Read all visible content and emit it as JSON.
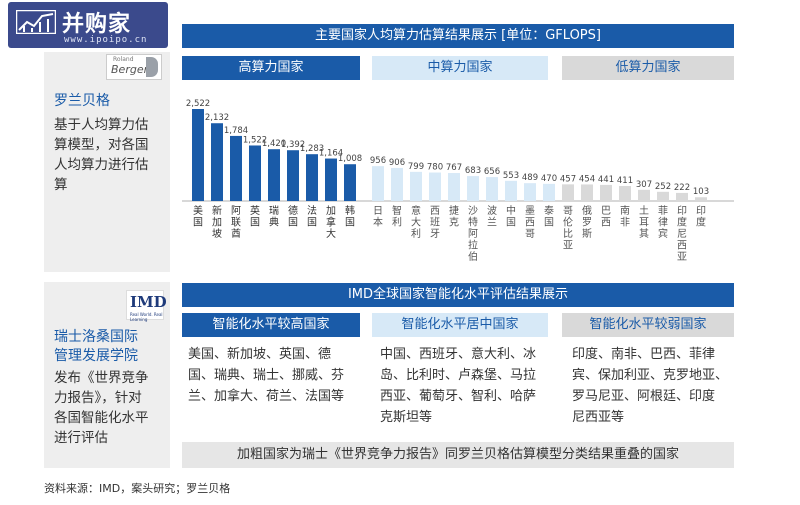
{
  "logo": {
    "name": "并购家",
    "url": "www.ipoipo.cn"
  },
  "top_section": {
    "header": "主要国家人均算力估算结果展示 [单位：GFLOPS]",
    "source_badge": {
      "line1": "Roland",
      "line2": "Berger"
    },
    "source_title": "罗兰贝格",
    "source_desc_lines": [
      "基于人均算力估",
      "算模型，对各国",
      "人均算力进行估",
      "算"
    ],
    "categories": {
      "high": "高算力国家",
      "mid": "中算力国家",
      "low": "低算力国家"
    }
  },
  "chart_data": {
    "type": "bar",
    "title": "主要国家人均算力估算结果展示 [单位：GFLOPS]",
    "ylabel": "",
    "ylim": [
      0,
      2600
    ],
    "grid": false,
    "categories": [
      "美国",
      "新加坡",
      "阿联酋",
      "英国",
      "瑞典",
      "德国",
      "法国",
      "加拿大",
      "韩国",
      "日本",
      "智利",
      "意大利",
      "西班牙",
      "捷克",
      "沙特阿拉伯",
      "波兰",
      "中国",
      "墨西哥",
      "泰国",
      "哥伦比亚",
      "俄罗斯",
      "巴西",
      "南非",
      "土耳其",
      "菲律宾",
      "印度尼西亚",
      "印度"
    ],
    "values": [
      2522,
      2132,
      1784,
      1522,
      1420,
      1392,
      1283,
      1164,
      1008,
      956,
      906,
      799,
      780,
      767,
      683,
      656,
      553,
      489,
      470,
      457,
      454,
      441,
      411,
      307,
      252,
      222,
      103
    ],
    "value_labels": [
      "2,522",
      "2,132",
      "1,784",
      "1,522",
      "1,420",
      "1,392",
      "1,283",
      "1,164",
      "1,008",
      "956",
      "906",
      "799",
      "780",
      "767",
      "683",
      "656",
      "553",
      "489",
      "470",
      "457",
      "454",
      "441",
      "411",
      "307",
      "252",
      "222",
      "103"
    ],
    "groups": [
      "high",
      "high",
      "high",
      "high",
      "high",
      "high",
      "high",
      "high",
      "high",
      "mid",
      "mid",
      "mid",
      "mid",
      "mid",
      "mid",
      "mid",
      "mid",
      "mid",
      "mid",
      "low",
      "low",
      "low",
      "low",
      "low",
      "low",
      "low",
      "low"
    ],
    "colors": {
      "high": "#1a5ba8",
      "mid": "#d7e9f7",
      "low": "#d9d9d9"
    }
  },
  "bottom_section": {
    "header": "IMD全球国家智能化水平评估结果展示",
    "source_badge": {
      "line1": "IMD",
      "line2": "Real World. Real Learning"
    },
    "source_title_lines": [
      "瑞士洛桑国际",
      "管理发展学院"
    ],
    "source_desc_lines": [
      "发布《世界竞争",
      "力报告》，针对",
      "各国智能化水平",
      "进行评估"
    ],
    "columns": [
      {
        "title": "智能化水平较高国家",
        "lines": [
          "美国、新加坡、英国、德",
          "国、瑞典、瑞士、挪威、芬",
          "兰、加拿大、荷兰、法国等"
        ]
      },
      {
        "title": "智能化水平居中国家",
        "lines": [
          "中国、西班牙、意大利、冰",
          "岛、比利时、卢森堡、马拉",
          "西亚、葡萄牙、智利、哈萨",
          "克斯坦等"
        ]
      },
      {
        "title": "智能化水平较弱国家",
        "lines": [
          "印度、南非、巴西、菲律",
          "宾、保加利亚、克罗地亚、",
          "罗马尼亚、阿根廷、印度",
          "尼西亚等"
        ]
      }
    ],
    "footnote": "加粗国家为瑞士《世界竞争力报告》同罗兰贝格估算模型分类结果重叠的国家"
  },
  "source_line": "资料来源：IMD，案头研究；罗兰贝格"
}
